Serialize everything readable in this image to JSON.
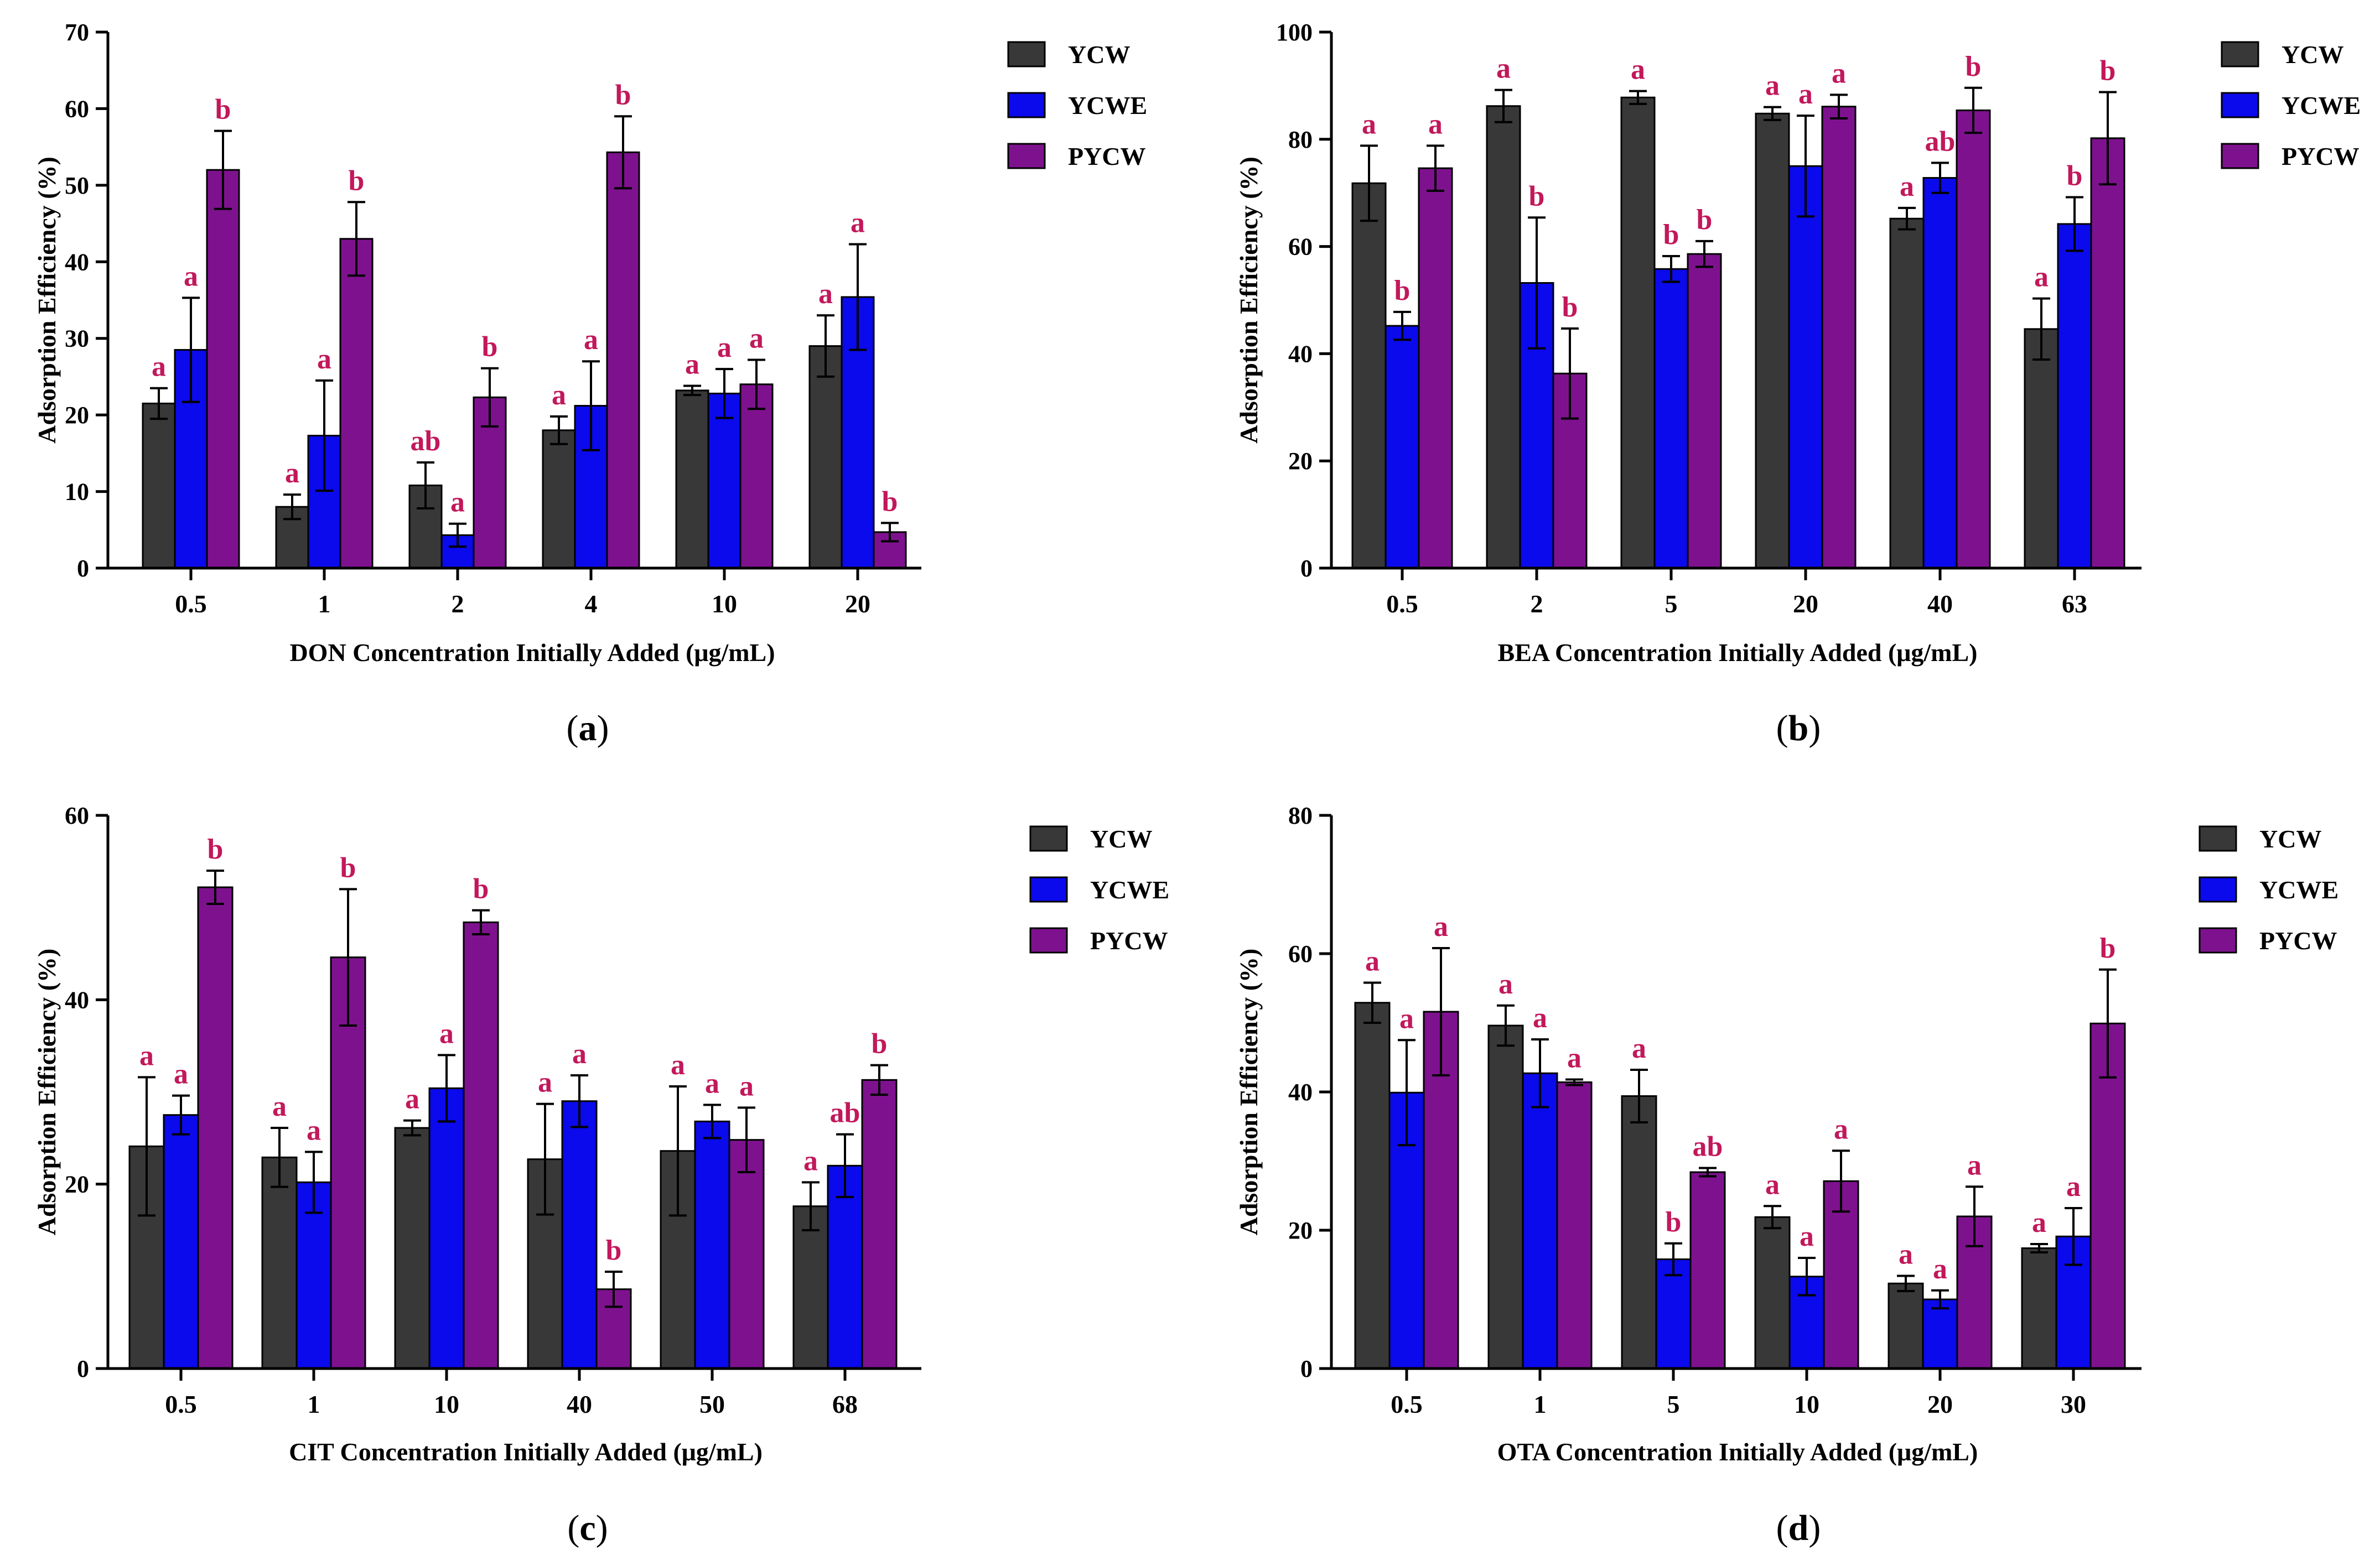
{
  "colors": {
    "YCW": "#383838",
    "YCWE": "#0a0aec",
    "PYCW": "#7e128e",
    "significance": "#c2185b"
  },
  "chart_data": [
    {
      "type": "bar",
      "panel": "a",
      "ylabel": "Adsorption Efficiency (%)",
      "xlabel": "DON Concentration Initially Added (μg/mL)",
      "ylim": [
        0,
        70
      ],
      "yticks": [
        0,
        10,
        20,
        30,
        40,
        50,
        60,
        70
      ],
      "categories": [
        "0.5",
        "1",
        "2",
        "4",
        "10",
        "20"
      ],
      "series": [
        {
          "name": "YCW",
          "values": [
            21.5,
            8.0,
            10.8,
            18.0,
            23.2,
            29.0
          ],
          "errors": [
            2.0,
            1.6,
            3.0,
            1.8,
            0.6,
            4.0
          ],
          "labels": [
            "a",
            "a",
            "ab",
            "a",
            "a",
            "a"
          ]
        },
        {
          "name": "YCWE",
          "values": [
            28.5,
            17.3,
            4.3,
            21.2,
            22.8,
            35.4
          ],
          "errors": [
            6.8,
            7.2,
            1.5,
            5.8,
            3.2,
            6.9
          ],
          "labels": [
            "a",
            "a",
            "a",
            "a",
            "a",
            "a"
          ]
        },
        {
          "name": "PYCW",
          "values": [
            52.0,
            43.0,
            22.3,
            54.3,
            24.0,
            4.7
          ],
          "errors": [
            5.1,
            4.8,
            3.8,
            4.7,
            3.2,
            1.2
          ],
          "labels": [
            "b",
            "b",
            "b",
            "b",
            "a",
            "b"
          ]
        }
      ]
    },
    {
      "type": "bar",
      "panel": "b",
      "ylabel": "Adsorption Efficiency (%)",
      "xlabel": "BEA Concentration Initially Added (μg/mL)",
      "ylim": [
        0,
        100
      ],
      "yticks": [
        0,
        20,
        40,
        60,
        80,
        100
      ],
      "categories": [
        "0.5",
        "2",
        "5",
        "20",
        "40",
        "63"
      ],
      "series": [
        {
          "name": "YCW",
          "values": [
            71.8,
            86.2,
            87.8,
            84.8,
            65.2,
            44.6
          ],
          "errors": [
            7.0,
            3.0,
            1.2,
            1.2,
            2.0,
            5.7
          ],
          "labels": [
            "a",
            "a",
            "a",
            "a",
            "a",
            "a"
          ]
        },
        {
          "name": "YCWE",
          "values": [
            45.2,
            53.2,
            55.8,
            75.0,
            72.8,
            64.2
          ],
          "errors": [
            2.6,
            12.2,
            2.4,
            9.4,
            2.8,
            5.0
          ],
          "labels": [
            "b",
            "b",
            "b",
            "a",
            "ab",
            "b"
          ]
        },
        {
          "name": "PYCW",
          "values": [
            74.6,
            36.3,
            58.6,
            86.1,
            85.4,
            80.2
          ],
          "errors": [
            4.2,
            8.4,
            2.4,
            2.2,
            4.2,
            8.6
          ],
          "labels": [
            "a",
            "b",
            "b",
            "a",
            "b",
            "b"
          ]
        }
      ]
    },
    {
      "type": "bar",
      "panel": "c",
      "ylabel": "Adsorption Efficiency (%)",
      "xlabel": "CIT Concentration Initially Added (μg/mL)",
      "ylim": [
        0,
        60
      ],
      "yticks": [
        0,
        20,
        40,
        60
      ],
      "categories": [
        "0.5",
        "1",
        "10",
        "40",
        "50",
        "68"
      ],
      "series": [
        {
          "name": "YCW",
          "values": [
            24.1,
            22.9,
            26.1,
            22.7,
            23.6,
            17.6
          ],
          "errors": [
            7.5,
            3.2,
            0.8,
            6.0,
            7.0,
            2.6
          ],
          "labels": [
            "a",
            "a",
            "a",
            "a",
            "a",
            "a"
          ]
        },
        {
          "name": "YCWE",
          "values": [
            27.5,
            20.2,
            30.4,
            29.0,
            26.8,
            22.0
          ],
          "errors": [
            2.1,
            3.3,
            3.6,
            2.8,
            1.8,
            3.4
          ],
          "labels": [
            "a",
            "a",
            "a",
            "a",
            "a",
            "ab"
          ]
        },
        {
          "name": "PYCW",
          "values": [
            52.2,
            44.6,
            48.4,
            8.6,
            24.8,
            31.3
          ],
          "errors": [
            1.8,
            7.4,
            1.3,
            1.9,
            3.5,
            1.6
          ],
          "labels": [
            "b",
            "b",
            "b",
            "b",
            "a",
            "b"
          ]
        }
      ]
    },
    {
      "type": "bar",
      "panel": "d",
      "ylabel": "Adsorption Efficiency (%)",
      "xlabel": "OTA Concentration Initially Added (μg/mL)",
      "ylim": [
        0,
        80
      ],
      "yticks": [
        0,
        20,
        40,
        60,
        80
      ],
      "categories": [
        "0.5",
        "1",
        "5",
        "10",
        "20",
        "30"
      ],
      "series": [
        {
          "name": "YCW",
          "values": [
            52.9,
            49.6,
            39.4,
            21.9,
            12.3,
            17.4
          ],
          "errors": [
            2.9,
            2.9,
            3.8,
            1.6,
            1.1,
            0.6
          ],
          "labels": [
            "a",
            "a",
            "a",
            "a",
            "a",
            "a"
          ]
        },
        {
          "name": "YCWE",
          "values": [
            39.9,
            42.7,
            15.8,
            13.3,
            10.0,
            19.1
          ],
          "errors": [
            7.6,
            4.9,
            2.3,
            2.7,
            1.3,
            4.1
          ],
          "labels": [
            "a",
            "a",
            "b",
            "a",
            "a",
            "a"
          ]
        },
        {
          "name": "PYCW",
          "values": [
            51.6,
            41.4,
            28.4,
            27.1,
            22.0,
            49.9
          ],
          "errors": [
            9.2,
            0.4,
            0.6,
            4.4,
            4.3,
            7.8
          ],
          "labels": [
            "a",
            "a",
            "ab",
            "a",
            "a",
            "b"
          ]
        }
      ]
    }
  ]
}
